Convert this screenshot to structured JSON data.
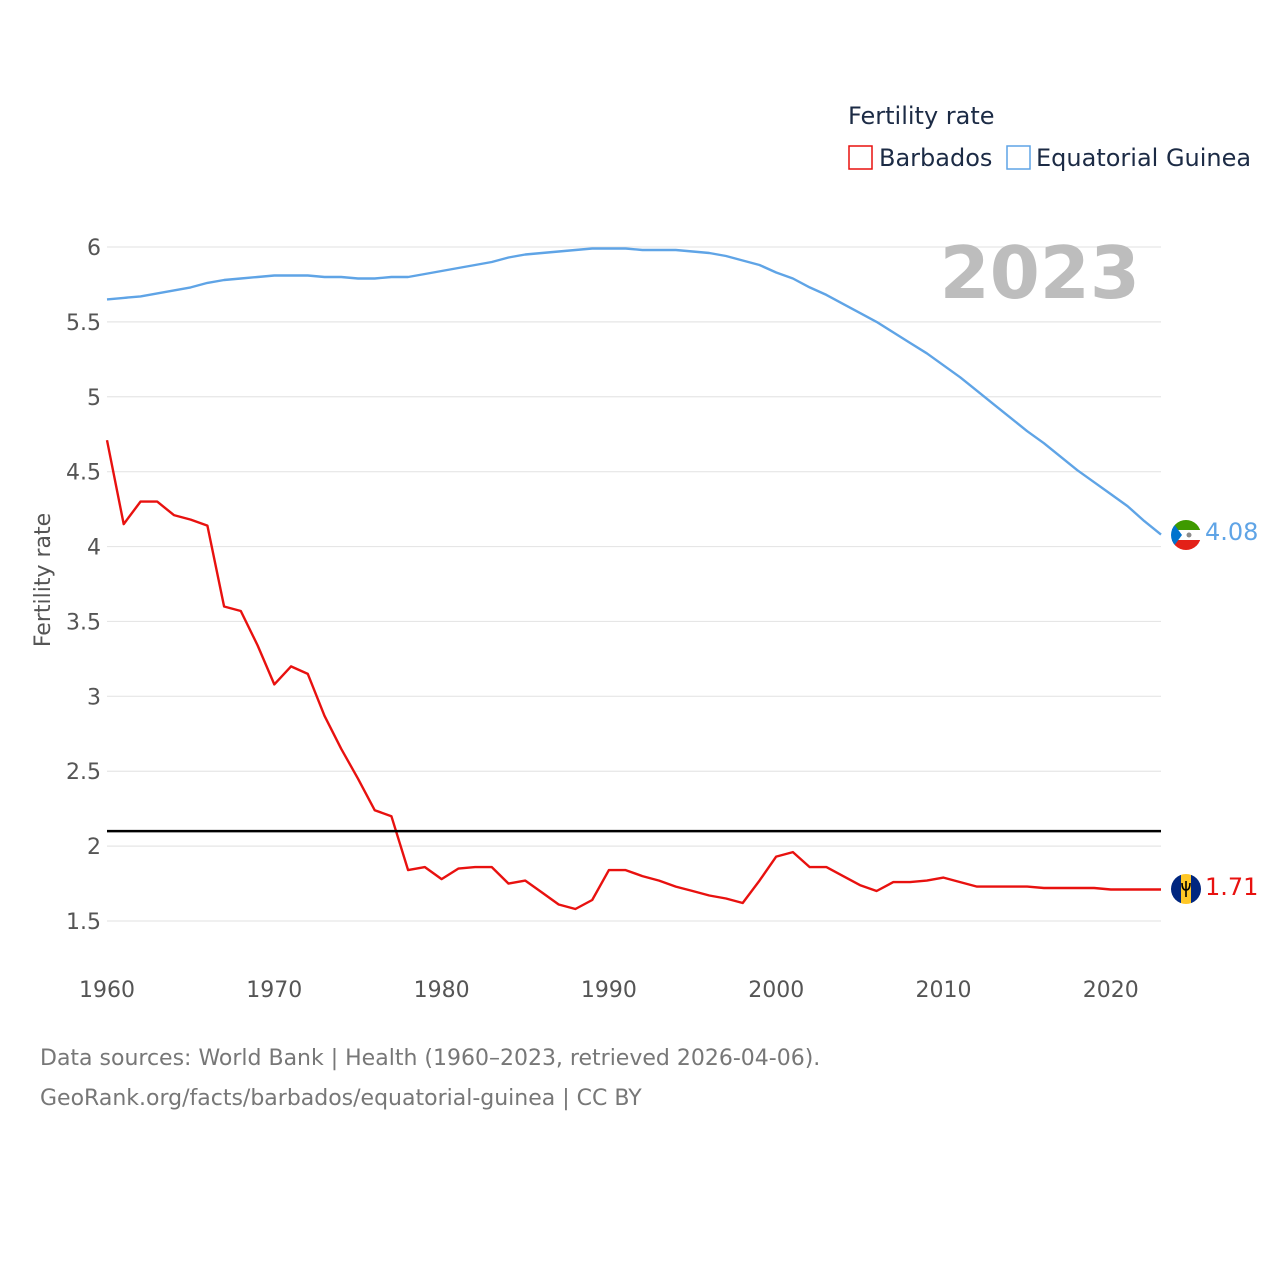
{
  "chart_data": {
    "type": "line",
    "title": "Fertility rate",
    "ylabel": "Fertility rate",
    "xlabel": "",
    "year_label": "2023",
    "xlim": [
      1960,
      2023
    ],
    "ylim": [
      1.35,
      6.15
    ],
    "x_ticks": [
      1960,
      1970,
      1980,
      1990,
      2000,
      2010,
      2020
    ],
    "y_ticks": [
      1.5,
      2,
      2.5,
      3,
      3.5,
      4,
      4.5,
      5,
      5.5,
      6
    ],
    "reference_line": 2.1,
    "x": [
      1960,
      1961,
      1962,
      1963,
      1964,
      1965,
      1966,
      1967,
      1968,
      1969,
      1970,
      1971,
      1972,
      1973,
      1974,
      1975,
      1976,
      1977,
      1978,
      1979,
      1980,
      1981,
      1982,
      1983,
      1984,
      1985,
      1986,
      1987,
      1988,
      1989,
      1990,
      1991,
      1992,
      1993,
      1994,
      1995,
      1996,
      1997,
      1998,
      1999,
      2000,
      2001,
      2002,
      2003,
      2004,
      2005,
      2006,
      2007,
      2008,
      2009,
      2010,
      2011,
      2012,
      2013,
      2014,
      2015,
      2016,
      2017,
      2018,
      2019,
      2020,
      2021,
      2022,
      2023
    ],
    "series": [
      {
        "name": "Barbados",
        "color": "#e8110f",
        "end_label": "1.71",
        "values": [
          4.71,
          4.15,
          4.3,
          4.3,
          4.21,
          4.18,
          4.14,
          3.6,
          3.57,
          3.34,
          3.08,
          3.2,
          3.15,
          2.87,
          2.65,
          2.45,
          2.24,
          2.2,
          1.84,
          1.86,
          1.78,
          1.85,
          1.86,
          1.86,
          1.75,
          1.77,
          1.69,
          1.61,
          1.58,
          1.64,
          1.84,
          1.84,
          1.8,
          1.77,
          1.73,
          1.7,
          1.67,
          1.65,
          1.62,
          1.77,
          1.93,
          1.96,
          1.86,
          1.86,
          1.8,
          1.74,
          1.7,
          1.76,
          1.76,
          1.77,
          1.79,
          1.76,
          1.73,
          1.73,
          1.73,
          1.73,
          1.72,
          1.72,
          1.72,
          1.72,
          1.71,
          1.71,
          1.71,
          1.71
        ]
      },
      {
        "name": "Equatorial Guinea",
        "color": "#5fa4e6",
        "end_label": "4.08",
        "values": [
          5.65,
          5.66,
          5.67,
          5.69,
          5.71,
          5.73,
          5.76,
          5.78,
          5.79,
          5.8,
          5.81,
          5.81,
          5.81,
          5.8,
          5.8,
          5.79,
          5.79,
          5.8,
          5.8,
          5.82,
          5.84,
          5.86,
          5.88,
          5.9,
          5.93,
          5.95,
          5.96,
          5.97,
          5.98,
          5.99,
          5.99,
          5.99,
          5.98,
          5.98,
          5.98,
          5.97,
          5.96,
          5.94,
          5.91,
          5.88,
          5.83,
          5.79,
          5.73,
          5.68,
          5.62,
          5.56,
          5.5,
          5.43,
          5.36,
          5.29,
          5.21,
          5.13,
          5.04,
          4.95,
          4.86,
          4.77,
          4.69,
          4.6,
          4.51,
          4.43,
          4.35,
          4.27,
          4.17,
          4.08
        ]
      }
    ]
  },
  "footer": {
    "line1": "Data sources: World Bank | Health (1960–2023, retrieved 2026-04-06).",
    "line2": "GeoRank.org/facts/barbados/equatorial-guinea | CC BY"
  }
}
